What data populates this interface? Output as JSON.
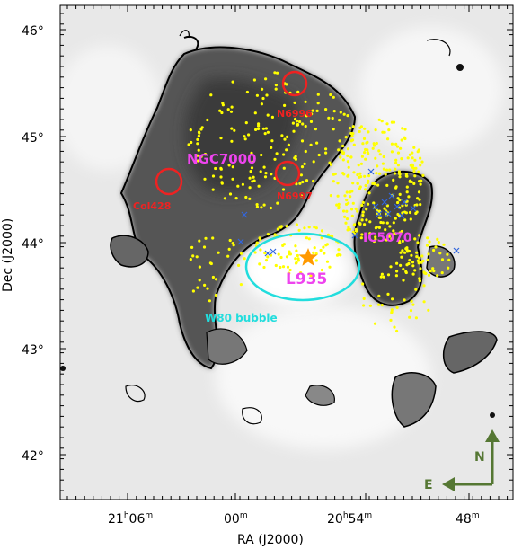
{
  "figure": {
    "xlabel": "RA (J2000)",
    "ylabel": "Dec (J2000)",
    "y_ticks": [
      "46°",
      "45°",
      "44°",
      "43°",
      "42°"
    ],
    "x_ticks": [
      {
        "main": "21",
        "sup1": "h",
        "mid": "06",
        "sup2": "m"
      },
      {
        "main": "00",
        "sup1": "m",
        "mid": "",
        "sup2": ""
      },
      {
        "main": "20",
        "sup1": "h",
        "mid": "54",
        "sup2": "m"
      },
      {
        "main": "48",
        "sup1": "m",
        "mid": "",
        "sup2": ""
      }
    ]
  },
  "annotations": {
    "ngc7000": "NGC7000",
    "ic5070": "IC5070",
    "l935": "L935",
    "w80": "W80 bubble",
    "n6996": "N6996",
    "n6997": "N6997",
    "col428": "Col428"
  },
  "compass": {
    "north": "N",
    "east": "E"
  },
  "colors": {
    "yellow_points": "#ffff00",
    "blue_crosses": "#3366dd",
    "red_circles": "#ee2222",
    "cyan_ellipse": "#22dddd",
    "magenta_labels": "#ee44ee",
    "orange_star": "#ff9900",
    "compass_green": "#557733"
  }
}
